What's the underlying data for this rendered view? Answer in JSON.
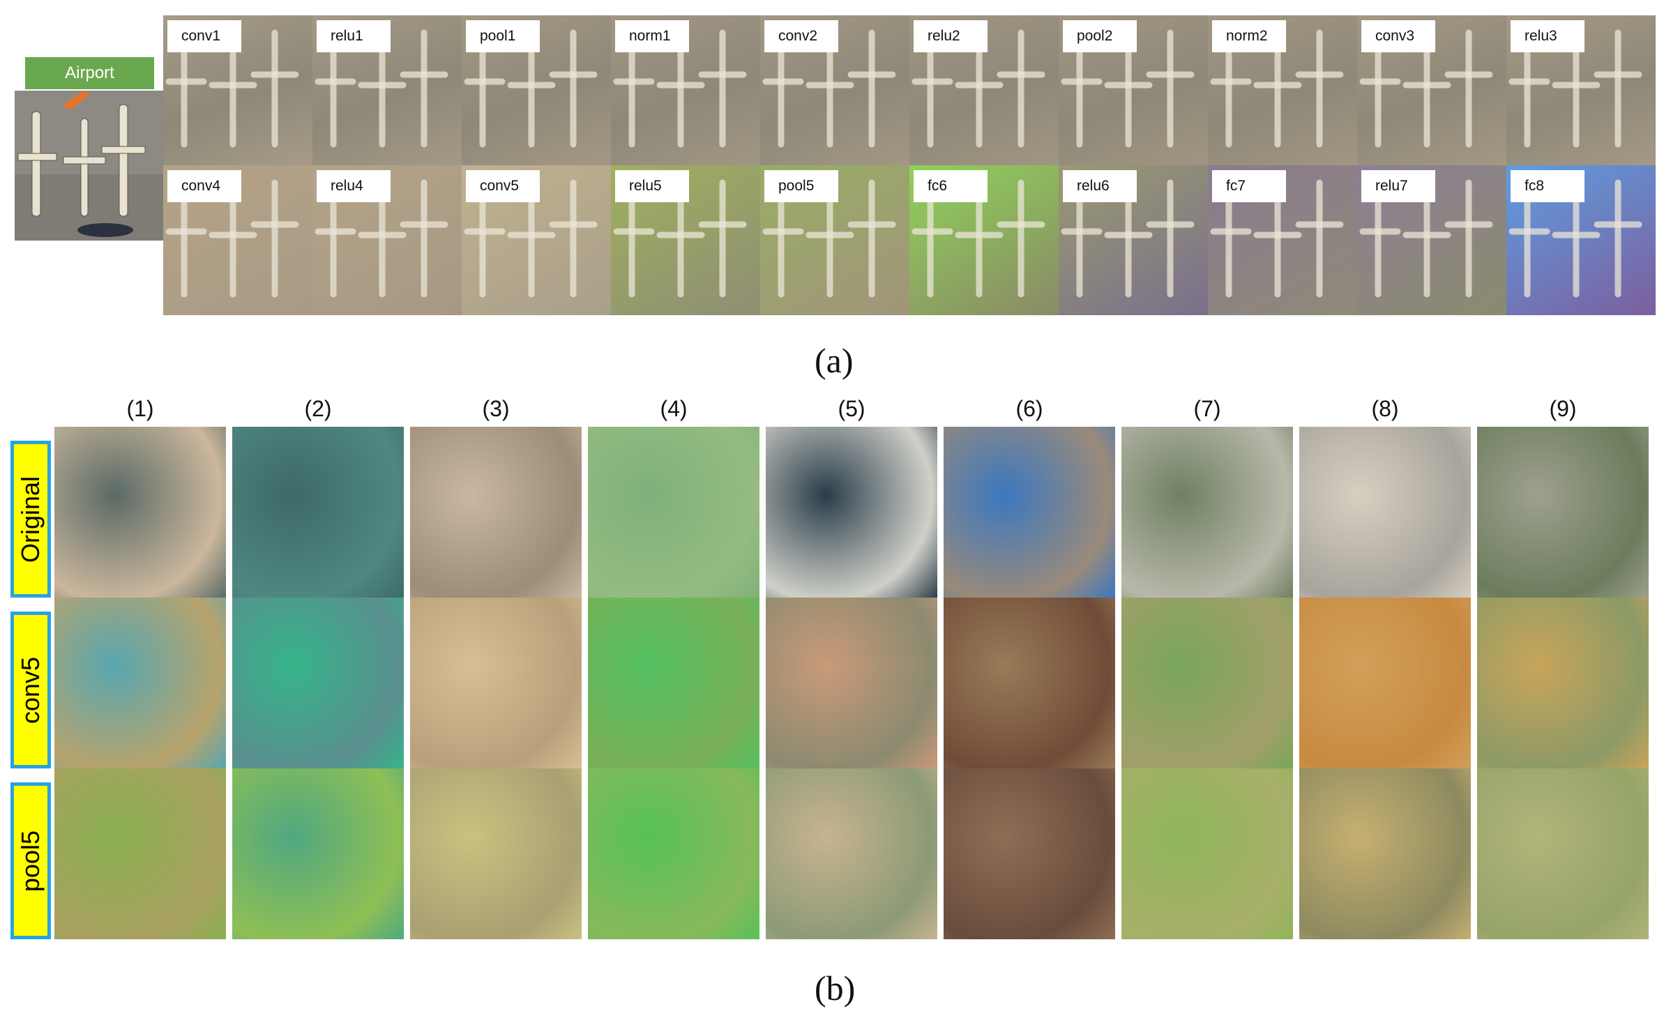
{
  "panel_a": {
    "input_label": "Airport",
    "layers_row1": [
      "conv1",
      "relu1",
      "pool1",
      "norm1",
      "conv2",
      "relu2",
      "pool2",
      "norm2",
      "conv3",
      "relu3"
    ],
    "layers_row2": [
      "conv4",
      "relu4",
      "conv5",
      "relu5",
      "pool5",
      "fc6",
      "relu6",
      "fc7",
      "relu7",
      "fc8"
    ],
    "caption": "(a)"
  },
  "panel_b": {
    "columns": [
      "(1)",
      "(2)",
      "(3)",
      "(4)",
      "(5)",
      "(6)",
      "(7)",
      "(8)",
      "(9)"
    ],
    "rows": [
      "Original",
      "conv5",
      "pool5"
    ],
    "caption": "(b)"
  },
  "colors": {
    "airport_label": "#6aa84f",
    "row_label_fill": "#ffff00",
    "row_label_border": "#29a3e0"
  }
}
